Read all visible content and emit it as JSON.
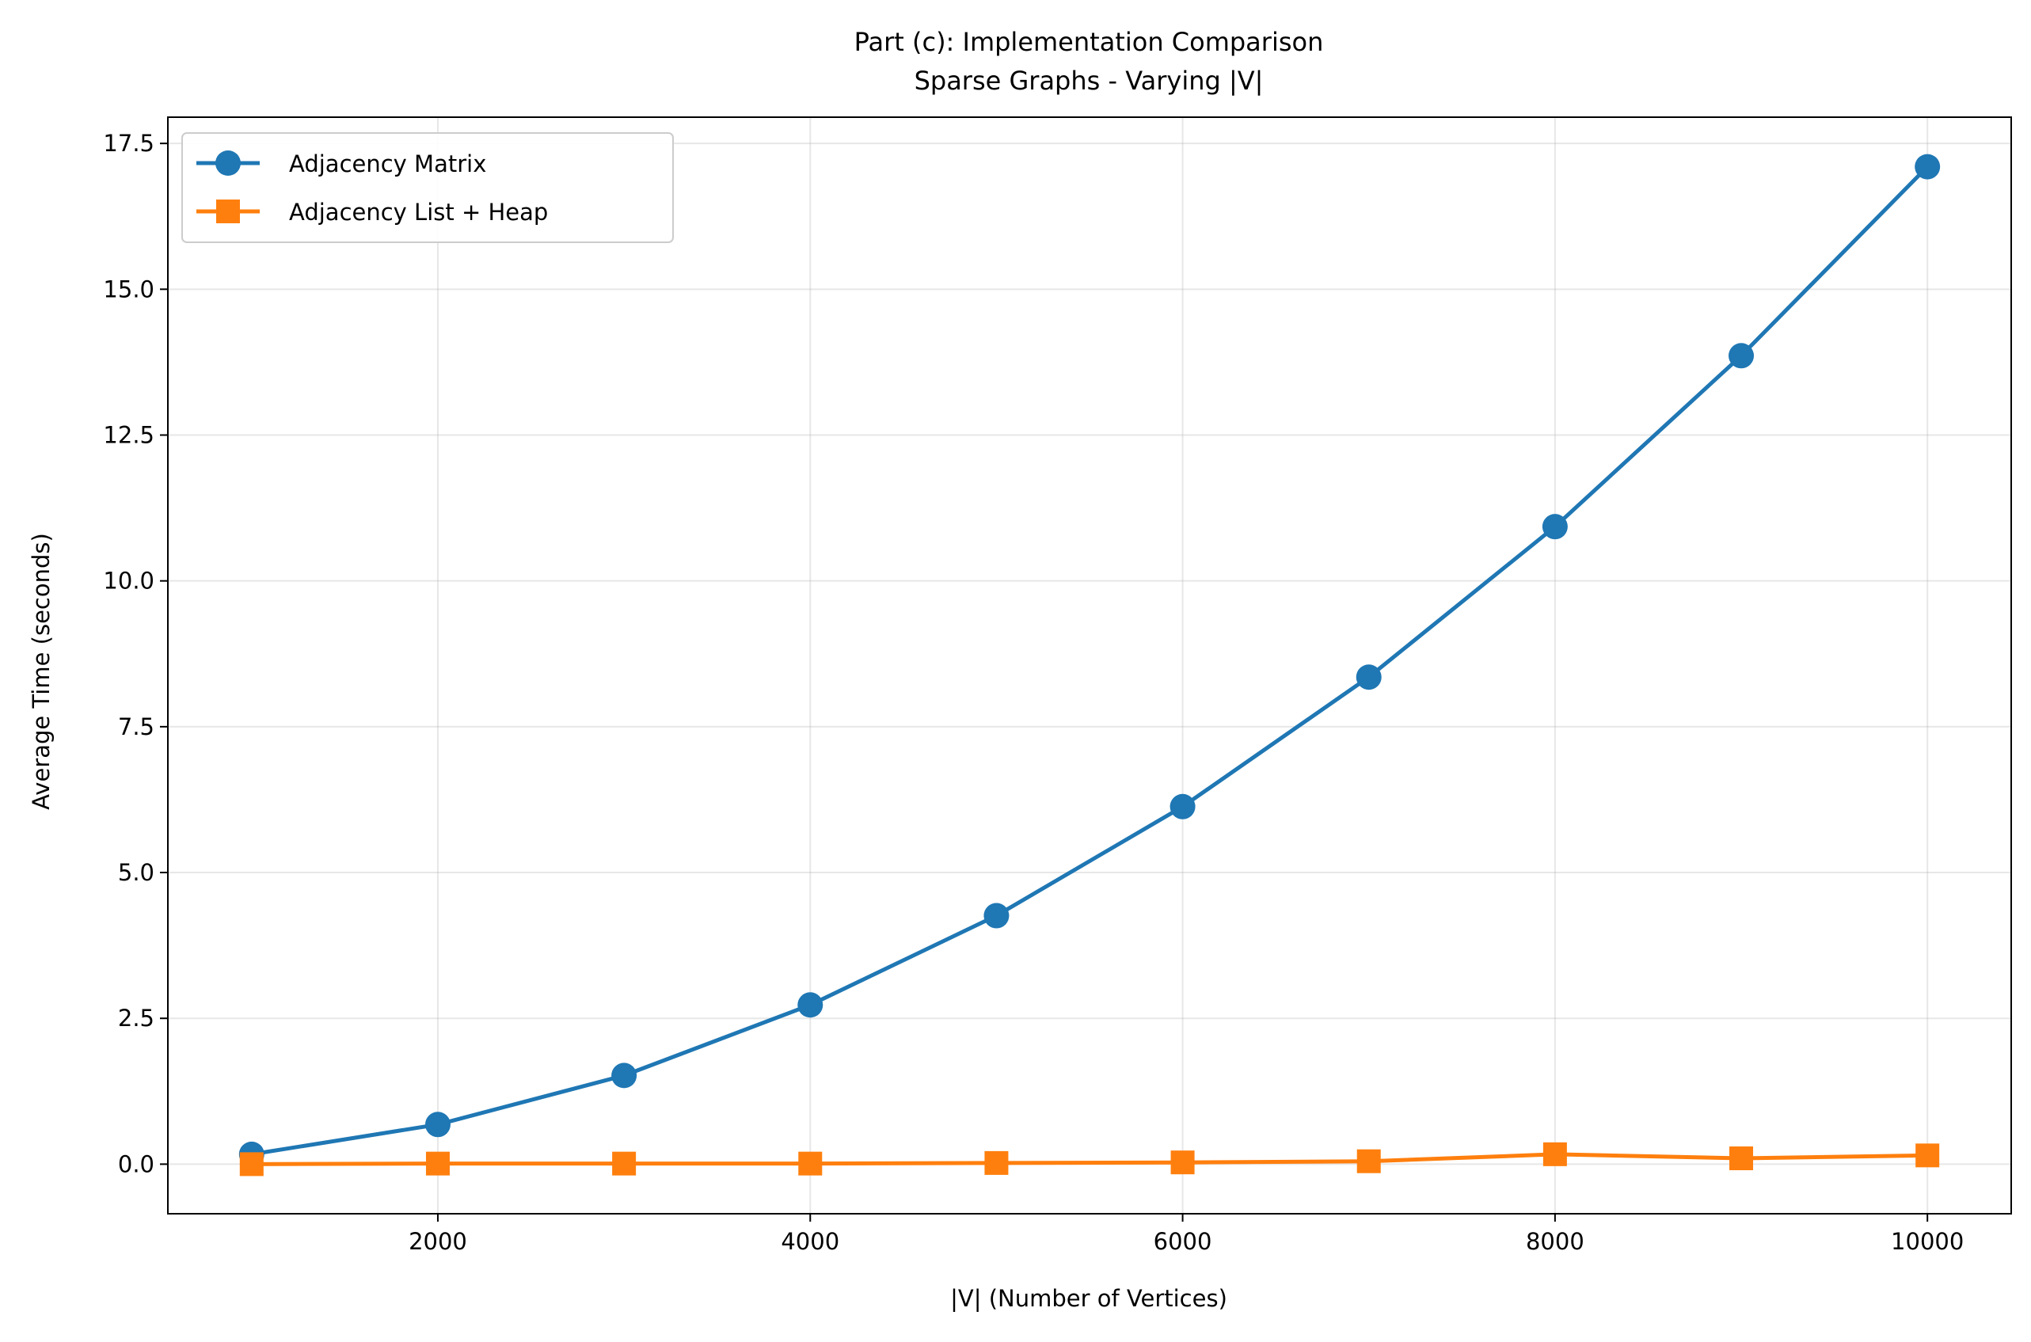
{
  "chart_data": {
    "type": "line",
    "title": "Part (c): Implementation Comparison",
    "subtitle": "Sparse Graphs - Varying |V|",
    "xlabel": "|V| (Number of Vertices)",
    "ylabel": "Average Time (seconds)",
    "xlim": [
      550,
      10450
    ],
    "ylim": [
      -0.85,
      17.95
    ],
    "xticks": [
      2000,
      4000,
      6000,
      8000,
      10000
    ],
    "xtick_labels": [
      "2000",
      "4000",
      "6000",
      "8000",
      "10000"
    ],
    "yticks": [
      0,
      2.5,
      5,
      7.5,
      10,
      12.5,
      15,
      17.5
    ],
    "ytick_labels": [
      "0.0",
      "2.5",
      "5.0",
      "7.5",
      "10.0",
      "12.5",
      "15.0",
      "17.5"
    ],
    "grid": true,
    "legend_position": "top-left",
    "x": [
      1000,
      2000,
      3000,
      4000,
      5000,
      6000,
      7000,
      8000,
      9000,
      10000
    ],
    "series": [
      {
        "name": "Adjacency Matrix",
        "marker": "circle",
        "color": "#1f77b4",
        "values": [
          0.17,
          0.68,
          1.52,
          2.73,
          4.26,
          6.13,
          8.35,
          10.93,
          13.86,
          17.1
        ]
      },
      {
        "name": "Adjacency List + Heap",
        "marker": "square",
        "color": "#ff7f0e",
        "values": [
          0.0,
          0.01,
          0.01,
          0.01,
          0.02,
          0.03,
          0.05,
          0.17,
          0.1,
          0.15
        ]
      }
    ]
  }
}
